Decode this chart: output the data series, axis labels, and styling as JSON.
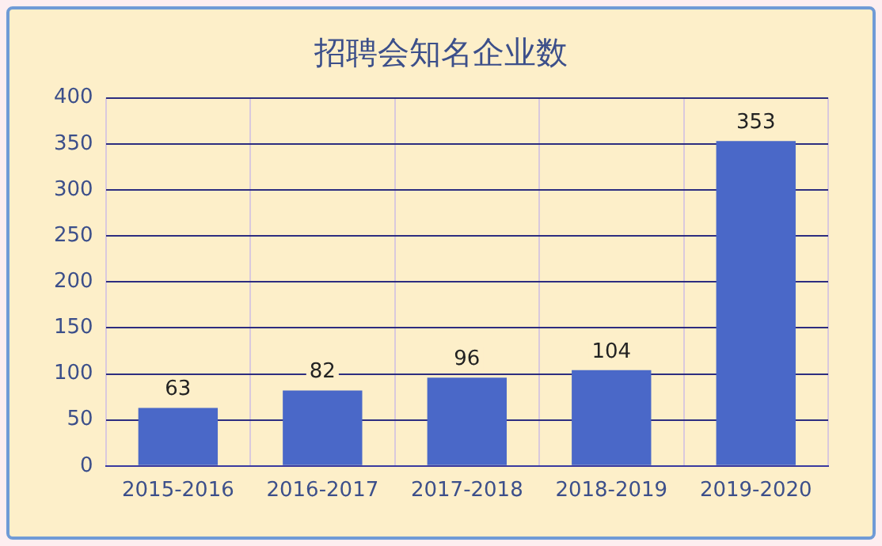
{
  "chart_data": {
    "type": "bar",
    "title": "招聘会知名企业数",
    "categories": [
      "2015-2016",
      "2016-2017",
      "2017-2018",
      "2018-2019",
      "2019-2020"
    ],
    "values": [
      63,
      82,
      96,
      104,
      353
    ],
    "color": "#4a68c8",
    "ylim": [
      0,
      400
    ],
    "yticks": [
      0,
      50,
      100,
      150,
      200,
      250,
      300,
      350,
      400
    ],
    "grid": true,
    "data_labels": true
  }
}
